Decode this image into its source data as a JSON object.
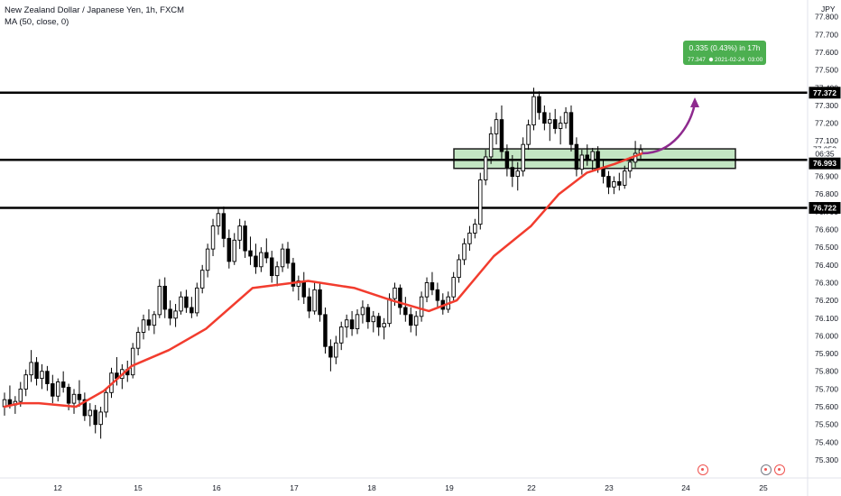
{
  "legend": {
    "title": "New Zealand Dollar / Japanese Yen, 1h, FXCM",
    "indicator": "MA (50, close, 0)"
  },
  "price_axis": {
    "currency": "JPY",
    "ticks": [
      "77.800",
      "77.700",
      "77.600",
      "77.500",
      "77.400",
      "77.300",
      "77.200",
      "77.100",
      "77.000",
      "76.900",
      "76.800",
      "76.700",
      "76.600",
      "76.500",
      "76.400",
      "76.300",
      "76.200",
      "76.100",
      "76.000",
      "75.900",
      "75.800",
      "75.700",
      "75.600",
      "75.500",
      "75.400",
      "75.300"
    ],
    "tags": [
      {
        "name": "level-tag-top",
        "label": "77.372",
        "bg": "#000000"
      },
      {
        "name": "last-price-tag",
        "label": "77.053",
        "bg": "#ffffff",
        "fg": "#131722"
      },
      {
        "name": "countdown-tag",
        "label": "06:35",
        "bg": "#ffffff",
        "fg": "#131722"
      },
      {
        "name": "level-tag-mid",
        "label": "76.993",
        "bg": "#000000"
      },
      {
        "name": "level-tag-low",
        "label": "76.722",
        "bg": "#000000"
      }
    ]
  },
  "time_axis": {
    "ticks": [
      "12",
      "15",
      "16",
      "17",
      "18",
      "19",
      "22",
      "23",
      "24",
      "25"
    ]
  },
  "projection": {
    "line1": "0.335 (0.43%) in 17h",
    "line2": "77.347",
    "line3": "2021-02-24",
    "line4": "03:00",
    "color": "#4caf50",
    "arrow_color": "#8e2a8e"
  },
  "colors": {
    "ma": "#f23c2e",
    "level": "#000000",
    "zone_fill": "#b9e2b9",
    "zone_stroke": "#1b1b1b",
    "candle": "#000000"
  },
  "chart_data": {
    "type": "candlestick",
    "title": "New Zealand Dollar / Japanese Yen, 1h, FXCM",
    "symbol": "NZDJPY",
    "timeframe": "1h",
    "y_axis": {
      "unit": "JPY",
      "range": [
        75.25,
        77.85
      ]
    },
    "x_ticks": [
      "12",
      "15",
      "16",
      "17",
      "18",
      "19",
      "22",
      "23",
      "24",
      "25"
    ],
    "horizontal_levels": [
      77.372,
      76.993,
      76.722
    ],
    "zone": {
      "from": 76.95,
      "to": 77.05
    },
    "last_price": 77.053,
    "projection_target": 77.347,
    "projection_change": "0.335 (0.43%) in 17h",
    "ma_series": {
      "name": "MA (50, close, 0)",
      "points": [
        [
          75.63,
          75.6
        ],
        [
          75.8,
          75.62
        ],
        [
          76.0,
          75.62
        ],
        [
          76.4,
          75.6
        ],
        [
          76.7,
          75.69
        ],
        [
          77.0,
          75.83
        ],
        [
          77.4,
          75.92
        ],
        [
          77.8,
          76.04
        ],
        [
          78.3,
          76.27
        ],
        [
          78.9,
          76.31
        ],
        [
          79.4,
          76.27
        ],
        [
          79.8,
          76.2
        ],
        [
          80.2,
          76.14
        ],
        [
          80.5,
          76.2
        ],
        [
          80.9,
          76.45
        ],
        [
          81.3,
          76.62
        ],
        [
          81.6,
          76.8
        ],
        [
          81.9,
          76.92
        ],
        [
          82.2,
          76.97
        ],
        [
          82.5,
          77.03
        ]
      ]
    },
    "price_path": [
      [
        75.5,
        75.63
      ],
      [
        75.8,
        75.8
      ],
      [
        76.1,
        75.65
      ],
      [
        76.4,
        75.45
      ],
      [
        76.6,
        75.8
      ],
      [
        76.9,
        76.05
      ],
      [
        77.0,
        76.45
      ],
      [
        77.3,
        76.05
      ],
      [
        77.6,
        76.15
      ],
      [
        77.8,
        76.7
      ],
      [
        78.0,
        76.35
      ],
      [
        78.3,
        76.4
      ],
      [
        78.6,
        76.2
      ],
      [
        78.8,
        76.0
      ],
      [
        79.0,
        75.85
      ],
      [
        79.3,
        76.05
      ],
      [
        79.6,
        76.1
      ],
      [
        79.8,
        76.15
      ],
      [
        80.0,
        76.3
      ],
      [
        80.3,
        76.1
      ],
      [
        80.5,
        76.2
      ],
      [
        80.8,
        76.3
      ],
      [
        80.95,
        76.7
      ],
      [
        81.1,
        77.1
      ],
      [
        81.25,
        77.3
      ],
      [
        81.4,
        76.9
      ],
      [
        81.55,
        77.4
      ],
      [
        81.7,
        77.15
      ],
      [
        81.9,
        77.2
      ],
      [
        82.1,
        77.1
      ],
      [
        82.3,
        76.95
      ],
      [
        82.5,
        77.0
      ],
      [
        82.7,
        76.85
      ],
      [
        82.9,
        77.05
      ]
    ],
    "candles": [
      {
        "o": 75.6,
        "h": 75.68,
        "l": 75.55,
        "c": 75.64
      },
      {
        "o": 75.64,
        "h": 75.72,
        "l": 75.59,
        "c": 75.61
      },
      {
        "o": 75.61,
        "h": 75.66,
        "l": 75.56,
        "c": 75.63
      },
      {
        "o": 75.63,
        "h": 75.74,
        "l": 75.6,
        "c": 75.7
      },
      {
        "o": 75.7,
        "h": 75.81,
        "l": 75.66,
        "c": 75.78
      },
      {
        "o": 75.78,
        "h": 75.92,
        "l": 75.74,
        "c": 75.85
      },
      {
        "o": 75.85,
        "h": 75.88,
        "l": 75.72,
        "c": 75.76
      },
      {
        "o": 75.76,
        "h": 75.84,
        "l": 75.7,
        "c": 75.8
      },
      {
        "o": 75.8,
        "h": 75.83,
        "l": 75.69,
        "c": 75.73
      },
      {
        "o": 75.73,
        "h": 75.78,
        "l": 75.62,
        "c": 75.66
      },
      {
        "o": 75.66,
        "h": 75.76,
        "l": 75.63,
        "c": 75.74
      },
      {
        "o": 75.74,
        "h": 75.8,
        "l": 75.68,
        "c": 75.71
      },
      {
        "o": 75.71,
        "h": 75.73,
        "l": 75.58,
        "c": 75.62
      },
      {
        "o": 75.62,
        "h": 75.7,
        "l": 75.56,
        "c": 75.67
      },
      {
        "o": 75.67,
        "h": 75.75,
        "l": 75.6,
        "c": 75.64
      },
      {
        "o": 75.64,
        "h": 75.68,
        "l": 75.52,
        "c": 75.55
      },
      {
        "o": 75.55,
        "h": 75.62,
        "l": 75.49,
        "c": 75.58
      },
      {
        "o": 75.58,
        "h": 75.61,
        "l": 75.45,
        "c": 75.5
      },
      {
        "o": 75.5,
        "h": 75.6,
        "l": 75.42,
        "c": 75.57
      },
      {
        "o": 75.57,
        "h": 75.7,
        "l": 75.54,
        "c": 75.68
      },
      {
        "o": 75.68,
        "h": 75.82,
        "l": 75.65,
        "c": 75.79
      },
      {
        "o": 75.79,
        "h": 75.88,
        "l": 75.72,
        "c": 75.76
      },
      {
        "o": 75.76,
        "h": 75.84,
        "l": 75.7,
        "c": 75.81
      },
      {
        "o": 75.81,
        "h": 75.86,
        "l": 75.74,
        "c": 75.78
      },
      {
        "o": 75.78,
        "h": 75.96,
        "l": 75.76,
        "c": 75.93
      },
      {
        "o": 75.93,
        "h": 76.05,
        "l": 75.89,
        "c": 76.02
      },
      {
        "o": 76.02,
        "h": 76.12,
        "l": 75.98,
        "c": 76.09
      },
      {
        "o": 76.09,
        "h": 76.15,
        "l": 76.03,
        "c": 76.06
      },
      {
        "o": 76.06,
        "h": 76.14,
        "l": 76.01,
        "c": 76.12
      },
      {
        "o": 76.12,
        "h": 76.32,
        "l": 76.1,
        "c": 76.28
      },
      {
        "o": 76.28,
        "h": 76.33,
        "l": 76.1,
        "c": 76.15
      },
      {
        "o": 76.15,
        "h": 76.2,
        "l": 76.06,
        "c": 76.1
      },
      {
        "o": 76.1,
        "h": 76.18,
        "l": 76.05,
        "c": 76.14
      },
      {
        "o": 76.14,
        "h": 76.25,
        "l": 76.12,
        "c": 76.22
      },
      {
        "o": 76.22,
        "h": 76.26,
        "l": 76.13,
        "c": 76.16
      },
      {
        "o": 76.16,
        "h": 76.22,
        "l": 76.1,
        "c": 76.13
      },
      {
        "o": 76.13,
        "h": 76.3,
        "l": 76.11,
        "c": 76.27
      },
      {
        "o": 76.27,
        "h": 76.4,
        "l": 76.24,
        "c": 76.37
      },
      {
        "o": 76.37,
        "h": 76.52,
        "l": 76.33,
        "c": 76.49
      },
      {
        "o": 76.49,
        "h": 76.66,
        "l": 76.45,
        "c": 76.62
      },
      {
        "o": 76.62,
        "h": 76.72,
        "l": 76.57,
        "c": 76.69
      },
      {
        "o": 76.69,
        "h": 76.73,
        "l": 76.5,
        "c": 76.55
      },
      {
        "o": 76.55,
        "h": 76.6,
        "l": 76.38,
        "c": 76.42
      },
      {
        "o": 76.42,
        "h": 76.58,
        "l": 76.4,
        "c": 76.54
      },
      {
        "o": 76.54,
        "h": 76.66,
        "l": 76.49,
        "c": 76.62
      },
      {
        "o": 76.62,
        "h": 76.65,
        "l": 76.44,
        "c": 76.48
      },
      {
        "o": 76.48,
        "h": 76.56,
        "l": 76.4,
        "c": 76.45
      },
      {
        "o": 76.45,
        "h": 76.52,
        "l": 76.35,
        "c": 76.39
      },
      {
        "o": 76.39,
        "h": 76.5,
        "l": 76.36,
        "c": 76.47
      },
      {
        "o": 76.47,
        "h": 76.55,
        "l": 76.41,
        "c": 76.44
      },
      {
        "o": 76.44,
        "h": 76.48,
        "l": 76.3,
        "c": 76.34
      },
      {
        "o": 76.34,
        "h": 76.42,
        "l": 76.28,
        "c": 76.39
      },
      {
        "o": 76.39,
        "h": 76.52,
        "l": 76.36,
        "c": 76.49
      },
      {
        "o": 76.49,
        "h": 76.53,
        "l": 76.38,
        "c": 76.41
      },
      {
        "o": 76.41,
        "h": 76.44,
        "l": 76.25,
        "c": 76.28
      },
      {
        "o": 76.28,
        "h": 76.34,
        "l": 76.2,
        "c": 76.31
      },
      {
        "o": 76.31,
        "h": 76.36,
        "l": 76.18,
        "c": 76.22
      },
      {
        "o": 76.22,
        "h": 76.27,
        "l": 76.1,
        "c": 76.14
      },
      {
        "o": 76.14,
        "h": 76.3,
        "l": 76.12,
        "c": 76.26
      },
      {
        "o": 76.26,
        "h": 76.3,
        "l": 76.08,
        "c": 76.12
      },
      {
        "o": 76.12,
        "h": 76.16,
        "l": 75.9,
        "c": 75.94
      },
      {
        "o": 75.94,
        "h": 75.98,
        "l": 75.8,
        "c": 75.88
      },
      {
        "o": 75.88,
        "h": 76.0,
        "l": 75.84,
        "c": 75.96
      },
      {
        "o": 75.96,
        "h": 76.08,
        "l": 75.92,
        "c": 76.05
      },
      {
        "o": 76.05,
        "h": 76.12,
        "l": 75.99,
        "c": 76.09
      },
      {
        "o": 76.09,
        "h": 76.14,
        "l": 76.0,
        "c": 76.04
      },
      {
        "o": 76.04,
        "h": 76.15,
        "l": 76.01,
        "c": 76.12
      },
      {
        "o": 76.12,
        "h": 76.2,
        "l": 76.07,
        "c": 76.16
      },
      {
        "o": 76.16,
        "h": 76.18,
        "l": 76.04,
        "c": 76.08
      },
      {
        "o": 76.08,
        "h": 76.14,
        "l": 76.02,
        "c": 76.11
      },
      {
        "o": 76.11,
        "h": 76.13,
        "l": 76.0,
        "c": 76.05
      },
      {
        "o": 76.05,
        "h": 76.1,
        "l": 75.98,
        "c": 76.07
      },
      {
        "o": 76.07,
        "h": 76.24,
        "l": 76.05,
        "c": 76.21
      },
      {
        "o": 76.21,
        "h": 76.3,
        "l": 76.17,
        "c": 76.27
      },
      {
        "o": 76.27,
        "h": 76.29,
        "l": 76.12,
        "c": 76.16
      },
      {
        "o": 76.16,
        "h": 76.22,
        "l": 76.08,
        "c": 76.12
      },
      {
        "o": 76.12,
        "h": 76.16,
        "l": 76.02,
        "c": 76.06
      },
      {
        "o": 76.06,
        "h": 76.14,
        "l": 76.0,
        "c": 76.11
      },
      {
        "o": 76.11,
        "h": 76.25,
        "l": 76.08,
        "c": 76.22
      },
      {
        "o": 76.22,
        "h": 76.33,
        "l": 76.19,
        "c": 76.3
      },
      {
        "o": 76.3,
        "h": 76.36,
        "l": 76.23,
        "c": 76.26
      },
      {
        "o": 76.26,
        "h": 76.3,
        "l": 76.16,
        "c": 76.2
      },
      {
        "o": 76.2,
        "h": 76.24,
        "l": 76.12,
        "c": 76.15
      },
      {
        "o": 76.15,
        "h": 76.25,
        "l": 76.13,
        "c": 76.22
      },
      {
        "o": 76.22,
        "h": 76.36,
        "l": 76.2,
        "c": 76.33
      },
      {
        "o": 76.33,
        "h": 76.46,
        "l": 76.3,
        "c": 76.43
      },
      {
        "o": 76.43,
        "h": 76.55,
        "l": 76.4,
        "c": 76.52
      },
      {
        "o": 76.52,
        "h": 76.62,
        "l": 76.48,
        "c": 76.58
      },
      {
        "o": 76.58,
        "h": 76.66,
        "l": 76.55,
        "c": 76.63
      },
      {
        "o": 76.63,
        "h": 76.92,
        "l": 76.6,
        "c": 76.88
      },
      {
        "o": 76.88,
        "h": 77.05,
        "l": 76.85,
        "c": 77.01
      },
      {
        "o": 77.01,
        "h": 77.18,
        "l": 76.97,
        "c": 77.14
      },
      {
        "o": 77.14,
        "h": 77.26,
        "l": 77.08,
        "c": 77.22
      },
      {
        "o": 77.22,
        "h": 77.3,
        "l": 77.0,
        "c": 77.04
      },
      {
        "o": 77.04,
        "h": 77.08,
        "l": 76.9,
        "c": 76.95
      },
      {
        "o": 76.95,
        "h": 77.02,
        "l": 76.84,
        "c": 76.9
      },
      {
        "o": 76.9,
        "h": 76.98,
        "l": 76.82,
        "c": 76.93
      },
      {
        "o": 76.93,
        "h": 77.12,
        "l": 76.9,
        "c": 77.08
      },
      {
        "o": 77.08,
        "h": 77.22,
        "l": 77.05,
        "c": 77.19
      },
      {
        "o": 77.19,
        "h": 77.4,
        "l": 77.16,
        "c": 77.35
      },
      {
        "o": 77.35,
        "h": 77.38,
        "l": 77.22,
        "c": 77.26
      },
      {
        "o": 77.26,
        "h": 77.3,
        "l": 77.16,
        "c": 77.2
      },
      {
        "o": 77.2,
        "h": 77.26,
        "l": 77.1,
        "c": 77.22
      },
      {
        "o": 77.22,
        "h": 77.28,
        "l": 77.14,
        "c": 77.17
      },
      {
        "o": 77.17,
        "h": 77.24,
        "l": 77.08,
        "c": 77.2
      },
      {
        "o": 77.2,
        "h": 77.29,
        "l": 77.17,
        "c": 77.26
      },
      {
        "o": 77.26,
        "h": 77.3,
        "l": 77.04,
        "c": 77.08
      },
      {
        "o": 77.08,
        "h": 77.12,
        "l": 76.9,
        "c": 76.94
      },
      {
        "o": 76.94,
        "h": 77.05,
        "l": 76.91,
        "c": 77.02
      },
      {
        "o": 77.02,
        "h": 77.08,
        "l": 76.96,
        "c": 76.99
      },
      {
        "o": 76.99,
        "h": 77.06,
        "l": 76.93,
        "c": 77.04
      },
      {
        "o": 77.04,
        "h": 77.07,
        "l": 76.92,
        "c": 76.95
      },
      {
        "o": 76.95,
        "h": 76.99,
        "l": 76.86,
        "c": 76.9
      },
      {
        "o": 76.9,
        "h": 76.93,
        "l": 76.8,
        "c": 76.84
      },
      {
        "o": 76.84,
        "h": 76.9,
        "l": 76.8,
        "c": 76.87
      },
      {
        "o": 76.87,
        "h": 76.92,
        "l": 76.82,
        "c": 76.85
      },
      {
        "o": 76.85,
        "h": 76.96,
        "l": 76.83,
        "c": 76.93
      },
      {
        "o": 76.93,
        "h": 77.01,
        "l": 76.89,
        "c": 76.98
      },
      {
        "o": 76.98,
        "h": 77.1,
        "l": 76.95,
        "c": 77.03
      },
      {
        "o": 77.03,
        "h": 77.08,
        "l": 77.0,
        "c": 77.05
      }
    ]
  }
}
